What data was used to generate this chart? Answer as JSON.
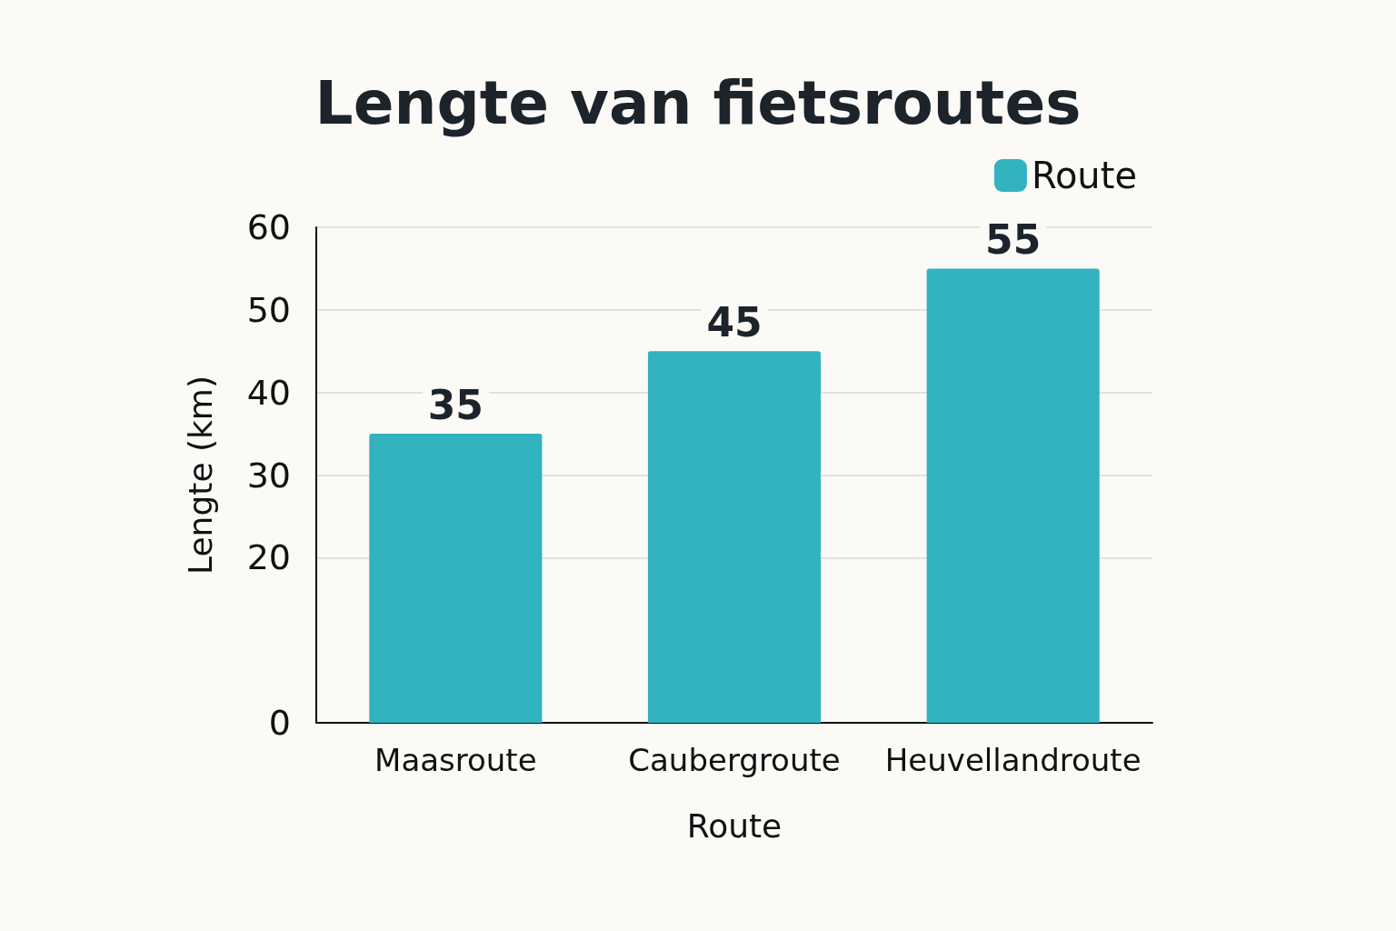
{
  "chart_data": {
    "type": "bar",
    "title": "Lengte van fietsroutes",
    "xlabel": "Route",
    "ylabel": "Lengte (km)",
    "categories": [
      "Maasroute",
      "Caubergroute",
      "Heuvellandroute"
    ],
    "series": [
      {
        "name": "Route",
        "color": "#33b3c0",
        "values": [
          35,
          45,
          55
        ]
      }
    ],
    "ylim": [
      0,
      60
    ],
    "yticks": [
      0,
      20,
      30,
      40,
      50,
      60
    ],
    "grid": true,
    "legend": "top right",
    "data_labels": true
  }
}
